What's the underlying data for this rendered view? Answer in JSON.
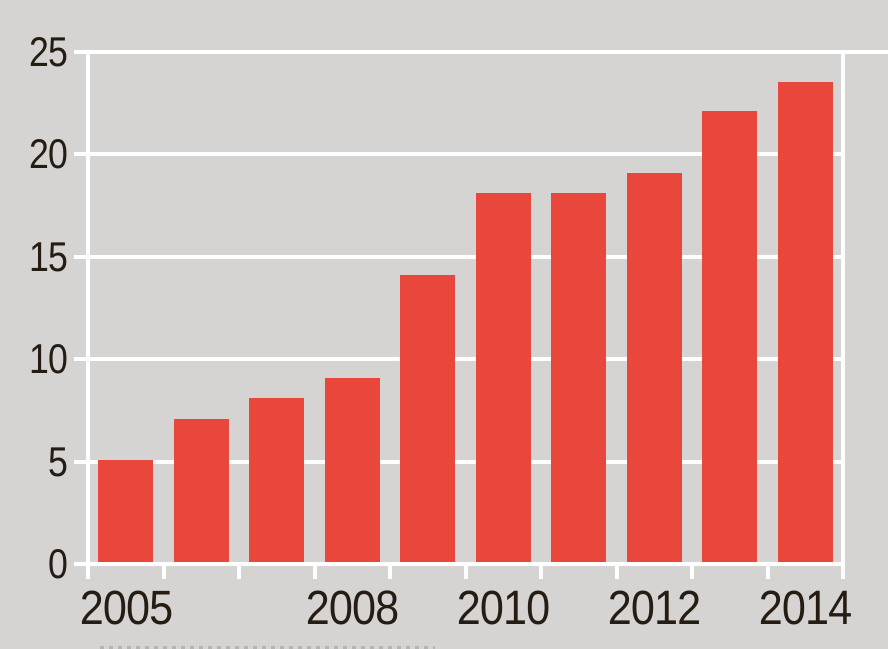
{
  "chart_data": {
    "type": "bar",
    "title": "",
    "xlabel": "",
    "ylabel": "",
    "categories": [
      "2005",
      "2006",
      "2007",
      "2008",
      "2009",
      "2010",
      "2011",
      "2012",
      "2013",
      "2014"
    ],
    "values": [
      5,
      7,
      8,
      9,
      14,
      18,
      18,
      19,
      22,
      23.4
    ],
    "ylim": [
      0,
      25
    ],
    "y_ticks": [
      0,
      5,
      10,
      15,
      20,
      25
    ],
    "x_axis_labels": [
      {
        "label": "2005",
        "slot": 0
      },
      {
        "label": "2008",
        "slot": 3
      },
      {
        "label": "2010",
        "slot": 5
      },
      {
        "label": "2012",
        "slot": 7
      },
      {
        "label": "2014",
        "slot": 9
      }
    ],
    "legend": "none",
    "grid": "horizontal white gridlines on gray panel, hidden behind bars",
    "colors": {
      "bar": "#e9463c",
      "background": "#d6d4d2",
      "gridline": "#ffffff",
      "text": "#251c13"
    }
  }
}
